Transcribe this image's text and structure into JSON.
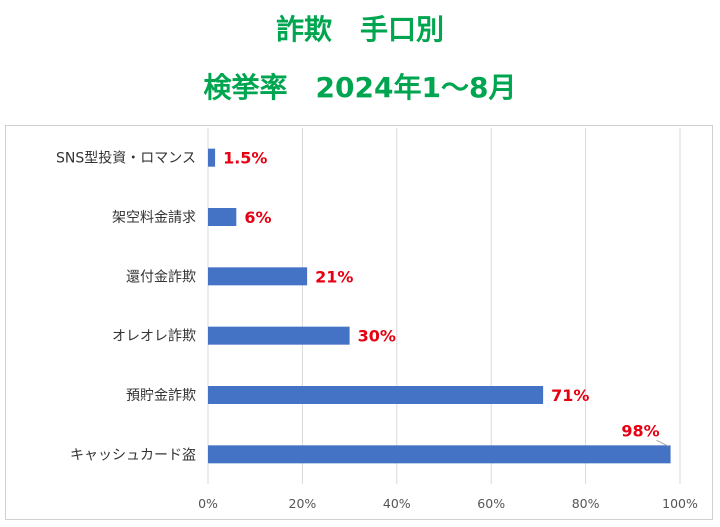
{
  "title": "詐欺　手口別",
  "subtitle": "検挙率　2024年1～8月",
  "chart_data": {
    "type": "bar",
    "orientation": "horizontal",
    "title": "詐欺　手口別",
    "subtitle": "検挙率　2024年1～8月",
    "categories": [
      "SNS型投資・ロマンス",
      "架空料金請求",
      "還付金詐欺",
      "オレオレ詐欺",
      "預貯金詐欺",
      "キャッシュカード盗"
    ],
    "values": [
      1.5,
      6,
      21,
      30,
      71,
      98
    ],
    "data_labels": [
      "1.5%",
      "6%",
      "21%",
      "30%",
      "71%",
      "98%"
    ],
    "xlim": [
      0,
      100
    ],
    "x_ticks": [
      "0%",
      "20%",
      "40%",
      "60%",
      "80%",
      "100%"
    ],
    "grid": true,
    "bar_color": "#4472c4",
    "label_color": "#e60012",
    "title_color": "#00a550"
  }
}
